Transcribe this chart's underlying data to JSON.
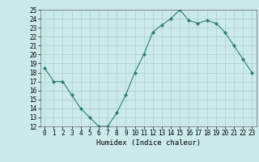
{
  "x": [
    0,
    1,
    2,
    3,
    4,
    5,
    6,
    7,
    8,
    9,
    10,
    11,
    12,
    13,
    14,
    15,
    16,
    17,
    18,
    19,
    20,
    21,
    22,
    23
  ],
  "y": [
    18.5,
    17.0,
    17.0,
    15.5,
    14.0,
    13.0,
    12.0,
    12.0,
    13.5,
    15.5,
    18.0,
    20.0,
    22.5,
    23.3,
    24.0,
    25.0,
    23.8,
    23.5,
    23.8,
    23.5,
    22.5,
    21.0,
    19.5,
    18.0
  ],
  "line_color": "#2e7d6e",
  "marker": "D",
  "marker_size": 2,
  "bg_color": "#cceaea",
  "grid_color": "#aacfcf",
  "xlabel": "Humidex (Indice chaleur)",
  "xlim": [
    -0.5,
    23.5
  ],
  "ylim": [
    12,
    25
  ],
  "yticks": [
    12,
    13,
    14,
    15,
    16,
    17,
    18,
    19,
    20,
    21,
    22,
    23,
    24,
    25
  ],
  "xticks": [
    0,
    1,
    2,
    3,
    4,
    5,
    6,
    7,
    8,
    9,
    10,
    11,
    12,
    13,
    14,
    15,
    16,
    17,
    18,
    19,
    20,
    21,
    22,
    23
  ]
}
